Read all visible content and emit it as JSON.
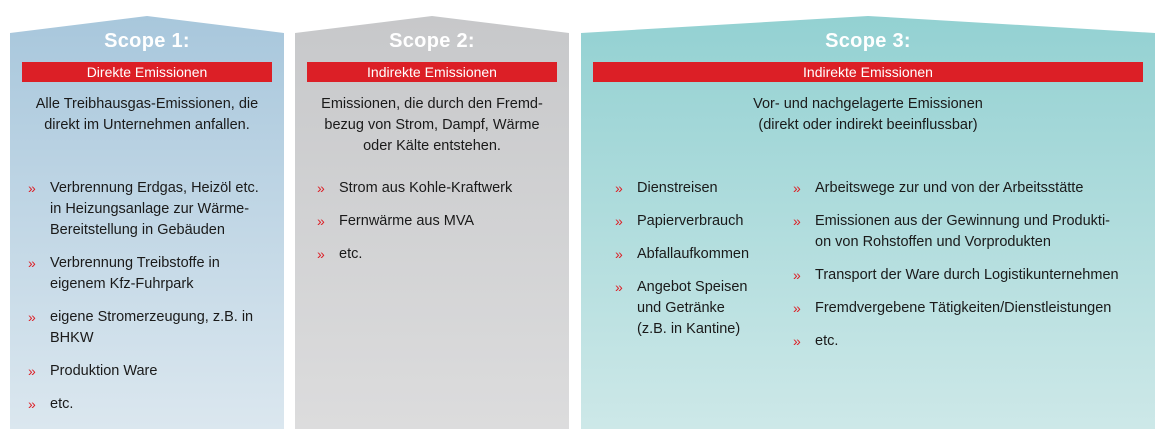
{
  "scopes": [
    {
      "title": "Scope 1:",
      "banner": "Direkte Emissionen",
      "desc": [
        "Alle Treibhausgas-Emissionen, die",
        "direkt im Unternehmen anfallen."
      ],
      "items": [
        [
          "Verbrennung Erdgas, Heizöl etc.",
          "in Heizungsanlage zur Wärme-",
          "Bereitstellung in Gebäuden"
        ],
        [
          "Verbrennung Treibstoffe in",
          "eigenem Kfz-Fuhrpark"
        ],
        [
          "eigene Stromerzeugung, z.B. in",
          "BHKW"
        ],
        [
          "Produktion Ware"
        ],
        [
          "etc."
        ]
      ]
    },
    {
      "title": "Scope 2:",
      "banner": "Indirekte Emissionen",
      "desc": [
        "Emissionen, die durch den Fremd-",
        "bezug von Strom, Dampf, Wärme",
        "oder Kälte entstehen."
      ],
      "items": [
        [
          "Strom aus Kohle-Kraftwerk"
        ],
        [
          "Fernwärme aus MVA"
        ],
        [
          "etc."
        ]
      ]
    },
    {
      "title": "Scope 3:",
      "banner": "Indirekte Emissionen",
      "desc": [
        "Vor- und nachgelagerte Emissionen",
        "(direkt oder indirekt beeinflussbar)"
      ],
      "items_left": [
        [
          "Dienstreisen"
        ],
        [
          "Papierverbrauch"
        ],
        [
          "Abfallaufkommen"
        ],
        [
          "Angebot Speisen",
          "und  Getränke",
          "(z.B. in Kantine)"
        ]
      ],
      "items_right": [
        [
          "Arbeitswege zur und von der Arbeitsstätte"
        ],
        [
          "Emissionen aus der Gewinnung und Produkti-",
          "on von Rohstoffen und Vorprodukten"
        ],
        [
          "Transport der Ware durch Logistikunternehmen"
        ],
        [
          "Fremdvergebene Tätigkeiten/Dienstleistungen"
        ],
        [
          "etc."
        ]
      ]
    }
  ],
  "bullet_glyph": "»",
  "colors": {
    "accent_red": "#dc1f26",
    "scope1": "#a8c7dc",
    "scope2": "#c7c8ca",
    "scope3": "#93d1d2"
  }
}
